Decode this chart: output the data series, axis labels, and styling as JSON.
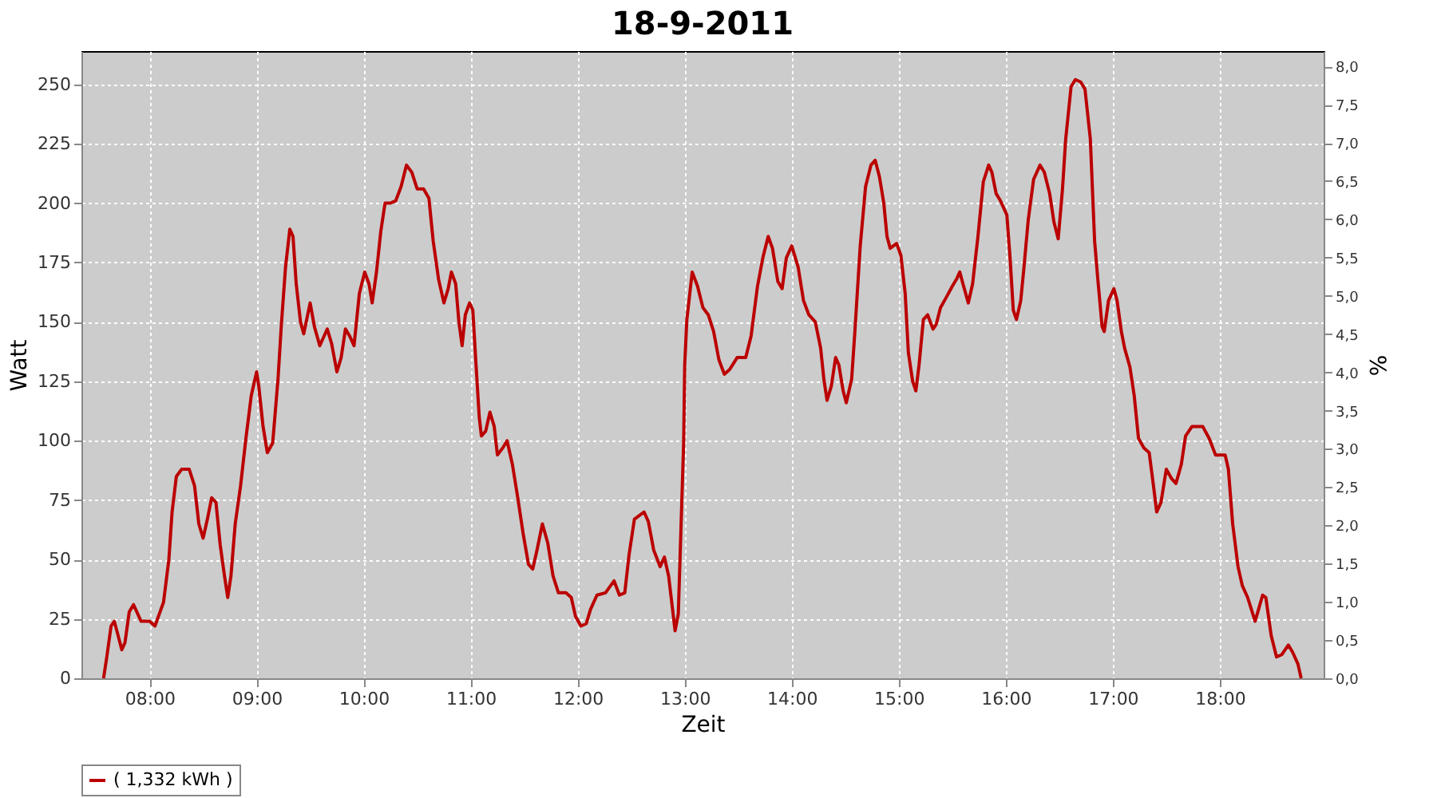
{
  "chart_data": {
    "type": "line",
    "title": "18-9-2011",
    "xlabel": "Zeit",
    "ylabel": "Watt",
    "y2label": "%",
    "xlim": [
      7.363,
      18.97
    ],
    "xticks": [
      {
        "value": 8,
        "label": "08:00"
      },
      {
        "value": 9,
        "label": "09:00"
      },
      {
        "value": 10,
        "label": "10:00"
      },
      {
        "value": 11,
        "label": "11:00"
      },
      {
        "value": 12,
        "label": "12:00"
      },
      {
        "value": 13,
        "label": "13:00"
      },
      {
        "value": 14,
        "label": "14:00"
      },
      {
        "value": 15,
        "label": "15:00"
      },
      {
        "value": 16,
        "label": "16:00"
      },
      {
        "value": 17,
        "label": "17:00"
      },
      {
        "value": 18,
        "label": "18:00"
      }
    ],
    "ylim": [
      0,
      264
    ],
    "yticks": [
      0,
      25,
      50,
      75,
      100,
      125,
      150,
      175,
      200,
      225,
      250
    ],
    "y2lim": [
      0,
      8.2
    ],
    "y2ticks": [
      {
        "value": 0,
        "label": "0,0"
      },
      {
        "value": 0.5,
        "label": "0,5"
      },
      {
        "value": 1,
        "label": "1,0"
      },
      {
        "value": 1.5,
        "label": "1,5"
      },
      {
        "value": 2,
        "label": "2,0"
      },
      {
        "value": 2.5,
        "label": "2,5"
      },
      {
        "value": 3,
        "label": "3,0"
      },
      {
        "value": 3.5,
        "label": "3,5"
      },
      {
        "value": 4,
        "label": "4,0"
      },
      {
        "value": 4.5,
        "label": "4,5"
      },
      {
        "value": 5,
        "label": "5,0"
      },
      {
        "value": 5.5,
        "label": "5,5"
      },
      {
        "value": 6,
        "label": "6,0"
      },
      {
        "value": 6.5,
        "label": "6,5"
      },
      {
        "value": 7,
        "label": "7,0"
      },
      {
        "value": 7.5,
        "label": "7,5"
      },
      {
        "value": 8,
        "label": "8,0"
      }
    ],
    "grid": true,
    "legend": "bottom",
    "line_style": "solid",
    "marker": "none",
    "series": [
      {
        "name": "( 1,332 kWh )",
        "color": "#bb0000",
        "x": [
          7.57,
          7.6,
          7.64,
          7.67,
          7.7,
          7.74,
          7.77,
          7.81,
          7.85,
          7.92,
          8.0,
          8.05,
          8.13,
          8.18,
          8.21,
          8.25,
          8.3,
          8.37,
          8.42,
          8.46,
          8.5,
          8.54,
          8.58,
          8.62,
          8.66,
          8.7,
          8.73,
          8.76,
          8.8,
          8.85,
          8.9,
          8.95,
          9.0,
          9.02,
          9.06,
          9.1,
          9.15,
          9.2,
          9.23,
          9.27,
          9.31,
          9.34,
          9.37,
          9.41,
          9.44,
          9.5,
          9.54,
          9.59,
          9.62,
          9.66,
          9.7,
          9.75,
          9.79,
          9.83,
          9.87,
          9.91,
          9.96,
          10.01,
          10.05,
          10.08,
          10.12,
          10.16,
          10.2,
          10.25,
          10.3,
          10.35,
          10.4,
          10.45,
          10.5,
          10.56,
          10.61,
          10.65,
          10.7,
          10.75,
          10.79,
          10.82,
          10.86,
          10.89,
          10.92,
          10.95,
          10.99,
          11.02,
          11.05,
          11.08,
          11.1,
          11.14,
          11.18,
          11.22,
          11.25,
          11.3,
          11.34,
          11.39,
          11.44,
          11.49,
          11.54,
          11.58,
          11.62,
          11.67,
          11.72,
          11.77,
          11.82,
          11.89,
          11.94,
          11.98,
          12.03,
          12.08,
          12.12,
          12.18,
          12.26,
          12.34,
          12.39,
          12.44,
          12.48,
          12.53,
          12.62,
          12.66,
          12.71,
          12.77,
          12.81,
          12.85,
          12.91,
          12.94,
          12.99,
          13.0,
          13.02,
          13.07,
          13.12,
          13.17,
          13.22,
          13.27,
          13.32,
          13.37,
          13.42,
          13.49,
          13.57,
          13.62,
          13.68,
          13.73,
          13.78,
          13.82,
          13.87,
          13.91,
          13.95,
          14.0,
          14.06,
          14.11,
          14.16,
          14.22,
          14.27,
          14.3,
          14.33,
          14.37,
          14.41,
          14.44,
          14.48,
          14.51,
          14.56,
          14.59,
          14.64,
          14.69,
          14.74,
          14.78,
          14.82,
          14.86,
          14.89,
          14.92,
          14.98,
          15.02,
          15.06,
          15.09,
          15.13,
          15.16,
          15.19,
          15.23,
          15.27,
          15.32,
          15.35,
          15.39,
          15.44,
          15.5,
          15.54,
          15.57,
          15.6,
          15.65,
          15.69,
          15.74,
          15.79,
          15.84,
          15.87,
          15.91,
          15.95,
          16.01,
          16.04,
          16.07,
          16.1,
          16.14,
          16.17,
          16.21,
          16.26,
          16.32,
          16.36,
          16.41,
          16.45,
          16.49,
          16.53,
          16.56,
          16.61,
          16.65,
          16.7,
          16.74,
          16.79,
          16.83,
          16.86,
          16.9,
          16.92,
          16.96,
          17.01,
          17.04,
          17.08,
          17.11,
          17.16,
          17.2,
          17.24,
          17.29,
          17.34,
          17.38,
          17.41,
          17.45,
          17.5,
          17.55,
          17.59,
          17.64,
          17.68,
          17.74,
          17.84,
          17.9,
          17.96,
          18.05,
          18.08,
          18.12,
          18.17,
          18.21,
          18.26,
          18.33,
          18.4,
          18.43,
          18.48,
          18.53,
          18.58,
          18.64,
          18.68,
          18.73,
          18.76
        ],
        "values": [
          0,
          9,
          22,
          24,
          19,
          12,
          15,
          28,
          31,
          24,
          24,
          22,
          32,
          50,
          70,
          85,
          88,
          88,
          81,
          65,
          59,
          67,
          76,
          74,
          56,
          43,
          34,
          43,
          65,
          81,
          101,
          119,
          129,
          123,
          106,
          95,
          99,
          126,
          148,
          173,
          189,
          186,
          166,
          150,
          145,
          158,
          148,
          140,
          143,
          147,
          141,
          129,
          135,
          147,
          144,
          140,
          162,
          171,
          166,
          158,
          171,
          188,
          200,
          200,
          201,
          207,
          216,
          213,
          206,
          206,
          202,
          184,
          168,
          158,
          164,
          171,
          166,
          150,
          140,
          153,
          158,
          155,
          132,
          110,
          102,
          104,
          112,
          106,
          94,
          97,
          100,
          90,
          76,
          61,
          48,
          46,
          54,
          65,
          57,
          43,
          36,
          36,
          34,
          26,
          22,
          23,
          29,
          35,
          36,
          41,
          35,
          36,
          52,
          67,
          70,
          66,
          54,
          47,
          51,
          43,
          20,
          27,
          99,
          132,
          151,
          171,
          165,
          156,
          153,
          146,
          134,
          128,
          130,
          135,
          135,
          144,
          165,
          177,
          186,
          181,
          167,
          164,
          177,
          182,
          173,
          159,
          153,
          150,
          139,
          126,
          117,
          123,
          135,
          132,
          121,
          116,
          126,
          146,
          182,
          207,
          216,
          218,
          211,
          200,
          186,
          181,
          183,
          178,
          162,
          137,
          125,
          121,
          132,
          151,
          153,
          147,
          149,
          156,
          160,
          165,
          168,
          171,
          166,
          158,
          166,
          186,
          209,
          216,
          213,
          204,
          201,
          195,
          177,
          155,
          151,
          159,
          173,
          193,
          210,
          216,
          213,
          204,
          192,
          185,
          206,
          227,
          249,
          252,
          251,
          248,
          227,
          184,
          168,
          148,
          146,
          159,
          164,
          159,
          146,
          139,
          131,
          119,
          101,
          97,
          95,
          81,
          70,
          74,
          88,
          84,
          82,
          90,
          102,
          106,
          106,
          101,
          94,
          94,
          88,
          65,
          47,
          39,
          34,
          24,
          35,
          34,
          18,
          9,
          10,
          14,
          11,
          6,
          0
        ]
      }
    ]
  }
}
